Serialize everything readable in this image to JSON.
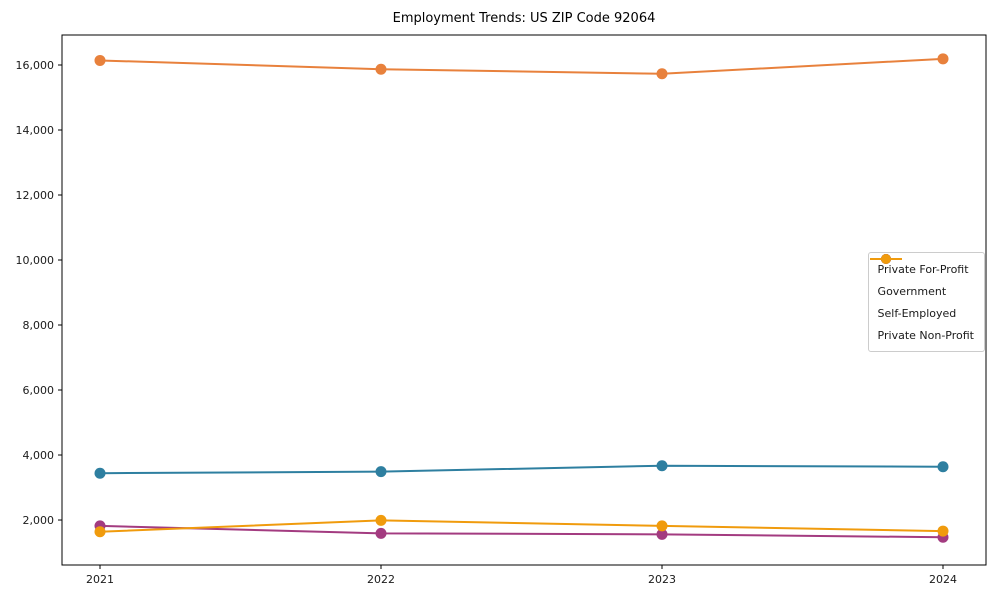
{
  "figure": {
    "background": "#ffffff"
  },
  "chart_data": {
    "type": "line",
    "title": "Employment Trends: US ZIP Code 92064",
    "x_labels": [
      "2021",
      "2022",
      "2023",
      "2024"
    ],
    "series": [
      {
        "name": "Private For-Profit",
        "color": "#e8813c",
        "values": [
          16140,
          15870,
          15730,
          16190
        ]
      },
      {
        "name": "Government",
        "color": "#2e7fa0",
        "values": [
          3440,
          3490,
          3670,
          3640
        ]
      },
      {
        "name": "Self-Employed",
        "color": "#a33b80",
        "values": [
          1820,
          1590,
          1560,
          1470
        ]
      },
      {
        "name": "Private Non-Profit",
        "color": "#f09b0d",
        "values": [
          1640,
          1990,
          1820,
          1660
        ]
      }
    ],
    "yticks": [
      2000,
      4000,
      6000,
      8000,
      10000,
      12000,
      14000,
      16000
    ],
    "ylim": [
      616,
      16923
    ],
    "xlabel": "",
    "ylabel": "",
    "grid": false,
    "legend_position": "center right",
    "marker": "circle",
    "axis_color": "#000000",
    "tick_label_color": "#1a1a1a"
  }
}
